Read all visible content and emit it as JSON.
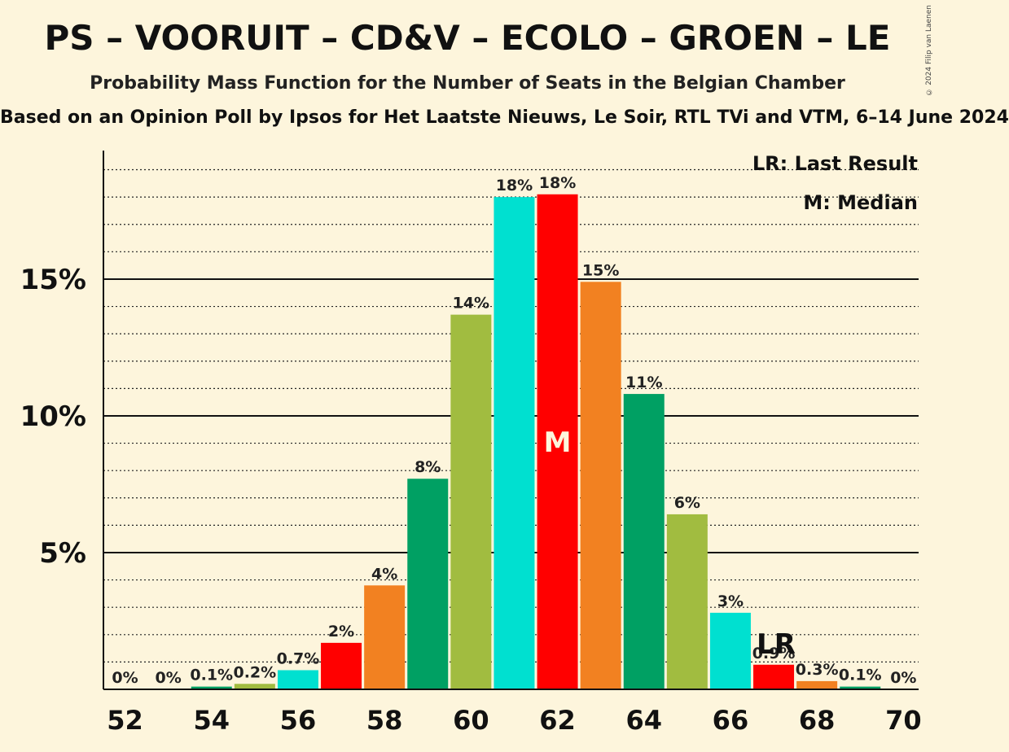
{
  "header": {
    "title": "PS – VOORUIT – CD&V – ECOLO – GROEN – LE",
    "subtitle": "Probability Mass Function for the Number of Seats in the Belgian Chamber",
    "source": "Based on an Opinion Poll by Ipsos for Het Laatste Nieuws, Le Soir, RTL TVi and VTM, 6–14 June 2024",
    "copyright": "© 2024 Filip van Laenen"
  },
  "legend": {
    "last_result": "LR: Last Result",
    "median": "M: Median"
  },
  "chart_data": {
    "type": "bar",
    "title": "PS – VOORUIT – CD&V – ECOLO – GROEN – LE",
    "subtitle": "Probability Mass Function for the Number of Seats in the Belgian Chamber",
    "x": [
      52,
      53,
      54,
      55,
      56,
      57,
      58,
      59,
      60,
      61,
      62,
      63,
      64,
      65,
      66,
      67,
      68,
      69,
      70
    ],
    "x_tick_labels": [
      "52",
      "54",
      "56",
      "58",
      "60",
      "62",
      "64",
      "66",
      "68",
      "70"
    ],
    "values": [
      0,
      0,
      0.1,
      0.2,
      0.7,
      1.7,
      3.8,
      7.7,
      13.7,
      18.0,
      18.1,
      14.9,
      10.8,
      6.4,
      2.8,
      0.9,
      0.3,
      0.1,
      0
    ],
    "labels": [
      "0%",
      "0%",
      "0.1%",
      "0.2%",
      "0.7%",
      "2%",
      "4%",
      "8%",
      "14%",
      "18%",
      "18%",
      "15%",
      "11%",
      "6%",
      "3%",
      "0.9%",
      "0.3%",
      "0.1%",
      "0%"
    ],
    "colors": [
      "#ff0000",
      "#f28121",
      "#00a063",
      "#a1bc40",
      "#00e0d0",
      "#ff0000",
      "#f28121",
      "#00a063",
      "#a1bc40",
      "#00e0d0",
      "#ff0000",
      "#f28121",
      "#00a063",
      "#a1bc40",
      "#00e0d0",
      "#ff0000",
      "#f28121",
      "#00a063",
      "#a1bc40"
    ],
    "y_ticks": [
      5,
      10,
      15
    ],
    "y_tick_labels": [
      "5%",
      "10%",
      "15%"
    ],
    "ylim": [
      0,
      19.7
    ],
    "median_seat": 62,
    "median_label": "M",
    "last_result_seat": 67,
    "last_result_label": "LR",
    "grid": true,
    "legend_position": "top-right"
  }
}
